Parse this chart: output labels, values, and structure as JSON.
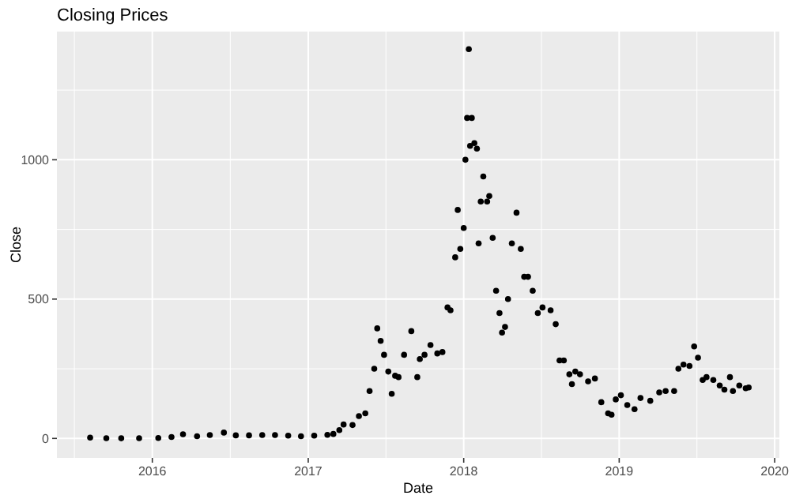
{
  "chart_data": {
    "type": "scatter",
    "title": "Closing Prices",
    "xlabel": "Date",
    "ylabel": "Close",
    "grid": true,
    "marker": "circle",
    "color": "#000000",
    "xlim": [
      "2015-05-22",
      "2020-01-12"
    ],
    "xticks": [
      "2016",
      "2017",
      "2018",
      "2019",
      "2020"
    ],
    "ylim": [
      -70,
      1460
    ],
    "yticks": [
      0,
      500,
      1000
    ],
    "x": [
      "2015-08-08",
      "2015-09-15",
      "2015-10-20",
      "2015-12-01",
      "2016-01-15",
      "2016-02-15",
      "2016-03-13",
      "2016-04-15",
      "2016-05-15",
      "2016-06-17",
      "2016-07-15",
      "2016-08-15",
      "2016-09-15",
      "2016-10-15",
      "2016-11-15",
      "2016-12-15",
      "2017-01-15",
      "2017-02-15",
      "2017-03-01",
      "2017-03-15",
      "2017-03-25",
      "2017-04-15",
      "2017-04-30",
      "2017-05-15",
      "2017-05-25",
      "2017-06-05",
      "2017-06-12",
      "2017-06-20",
      "2017-06-28",
      "2017-07-08",
      "2017-07-16",
      "2017-07-24",
      "2017-08-01",
      "2017-08-14",
      "2017-08-31",
      "2017-09-14",
      "2017-09-20",
      "2017-10-01",
      "2017-10-15",
      "2017-10-31",
      "2017-11-12",
      "2017-11-24",
      "2017-12-01",
      "2017-12-12",
      "2017-12-18",
      "2017-12-24",
      "2018-01-01",
      "2018-01-05",
      "2018-01-09",
      "2018-01-13",
      "2018-01-16",
      "2018-01-20",
      "2018-01-26",
      "2018-02-01",
      "2018-02-05",
      "2018-02-10",
      "2018-02-16",
      "2018-02-25",
      "2018-03-02",
      "2018-03-10",
      "2018-03-18",
      "2018-03-26",
      "2018-04-01",
      "2018-04-08",
      "2018-04-15",
      "2018-04-24",
      "2018-05-05",
      "2018-05-15",
      "2018-05-23",
      "2018-06-01",
      "2018-06-12",
      "2018-06-24",
      "2018-07-05",
      "2018-07-24",
      "2018-08-05",
      "2018-08-14",
      "2018-08-24",
      "2018-09-06",
      "2018-09-12",
      "2018-09-20",
      "2018-10-01",
      "2018-10-20",
      "2018-11-05",
      "2018-11-20",
      "2018-12-06",
      "2018-12-14",
      "2018-12-24",
      "2019-01-05",
      "2019-01-20",
      "2019-02-06",
      "2019-02-20",
      "2019-03-15",
      "2019-04-05",
      "2019-04-20",
      "2019-05-10",
      "2019-05-20",
      "2019-06-01",
      "2019-06-15",
      "2019-06-26",
      "2019-07-05",
      "2019-07-16",
      "2019-07-25",
      "2019-08-10",
      "2019-08-25",
      "2019-09-05",
      "2019-09-18",
      "2019-09-25",
      "2019-10-10",
      "2019-10-25",
      "2019-11-01"
    ],
    "values": [
      3,
      1,
      0.5,
      1,
      1.5,
      5,
      15,
      8,
      12,
      21,
      11,
      11,
      12,
      12,
      10,
      8,
      10,
      13,
      16,
      30,
      50,
      48,
      80,
      90,
      170,
      250,
      395,
      350,
      300,
      240,
      160,
      225,
      220,
      300,
      385,
      220,
      285,
      300,
      335,
      305,
      310,
      470,
      460,
      650,
      820,
      680,
      755,
      1000,
      1150,
      1397,
      1050,
      1150,
      1060,
      1040,
      700,
      850,
      940,
      850,
      870,
      720,
      530,
      450,
      380,
      400,
      500,
      700,
      810,
      680,
      580,
      580,
      530,
      450,
      470,
      460,
      410,
      280,
      280,
      230,
      195,
      240,
      230,
      205,
      215,
      130,
      90,
      85,
      140,
      155,
      120,
      105,
      145,
      135,
      165,
      170,
      170,
      250,
      265,
      260,
      330,
      290,
      210,
      220,
      210,
      190,
      175,
      220,
      170,
      190,
      180,
      183
    ]
  }
}
